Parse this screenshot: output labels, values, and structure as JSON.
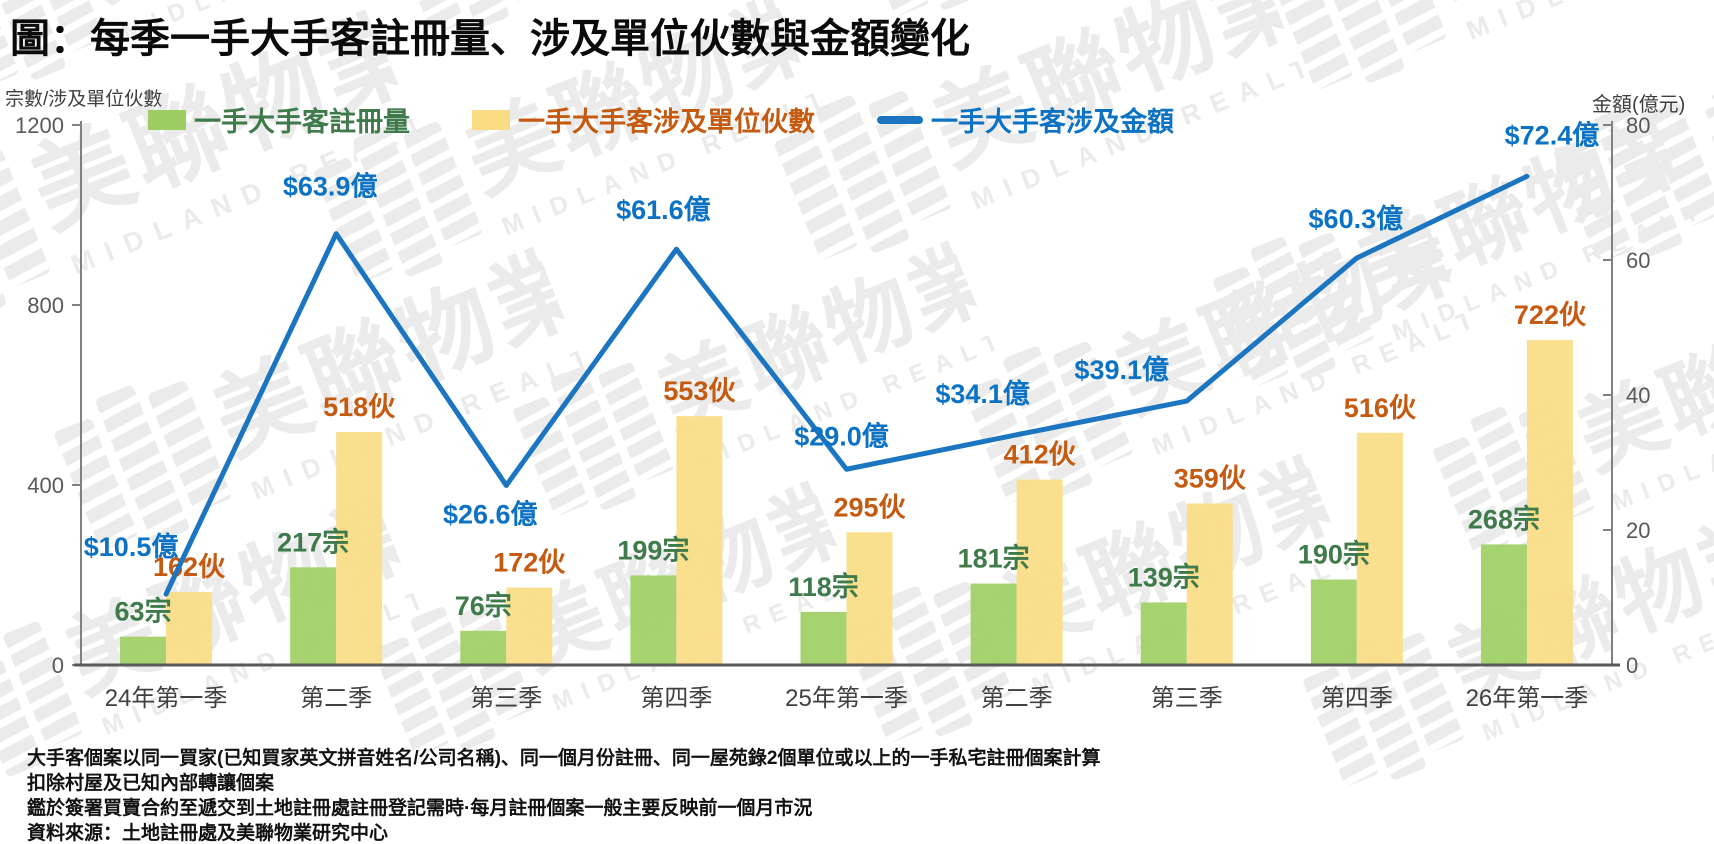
{
  "title": "圖：每季一手大手客註冊量、涉及單位伙數與金額變化",
  "left_axis_title": "宗數/涉及單位伙數",
  "right_axis_title": "金額(億元)",
  "legend": [
    {
      "label": "一手大手客註冊量",
      "swatch_color": "#9ECE63",
      "text_color": "#3F7A4B",
      "type": "swatch"
    },
    {
      "label": "一手大手客涉及單位伙數",
      "swatch_color": "#FADC85",
      "text_color": "#C55A11",
      "type": "swatch"
    },
    {
      "label": "一手大手客涉及金額",
      "swatch_color": "#1B75C0",
      "text_color": "#0C72C4",
      "type": "line"
    }
  ],
  "chart_data": {
    "type": "bar+line",
    "categories": [
      "24年第一季",
      "第二季",
      "第三季",
      "第四季",
      "25年第一季",
      "第二季",
      "第三季",
      "第四季",
      "26年第一季"
    ],
    "series": [
      {
        "name": "一手大手客註冊量",
        "type": "bar",
        "axis": "left",
        "unit_suffix": "宗",
        "values": [
          63,
          217,
          76,
          199,
          118,
          181,
          139,
          190,
          268
        ],
        "color": "#9ECE63",
        "label_color": "#3F7A4B"
      },
      {
        "name": "一手大手客涉及單位伙數",
        "type": "bar",
        "axis": "left",
        "unit_suffix": "伙",
        "values": [
          162,
          518,
          172,
          553,
          295,
          412,
          359,
          516,
          722
        ],
        "color": "#FADC85",
        "label_color": "#C55A11"
      },
      {
        "name": "一手大手客涉及金額",
        "type": "line",
        "axis": "right",
        "label_prefix": "$",
        "unit_suffix": "億",
        "decimals": 1,
        "values": [
          10.5,
          63.9,
          26.6,
          61.6,
          29.0,
          34.1,
          39.1,
          60.3,
          72.4
        ],
        "color": "#1B75C0",
        "label_color": "#0C72C4"
      }
    ],
    "left_axis": {
      "min": 0,
      "max": 1200,
      "ticks": [
        0,
        400,
        800,
        1200
      ]
    },
    "right_axis": {
      "min": 0,
      "max": 80,
      "ticks": [
        0,
        20,
        40,
        60,
        80
      ]
    },
    "grid": false,
    "legend_position": "top"
  },
  "footnotes": [
    "大手客個案以同一買家(已知買家英文拼音姓名/公司名稱)、同一個月份註冊、同一屋苑錄2個單位或以上的一手私宅註冊個案計算",
    "扣除村屋及已知內部轉讓個案",
    "鑑於簽署買賣合約至遞交到土地註冊處註冊登記需時·每月註冊個案一般主要反映前一個月市況",
    "資料來源：土地註冊處及美聯物業研究中心"
  ],
  "watermark": {
    "cjk": "美聯物業",
    "latin": "MIDLAND REALTY",
    "color": "#ebebeb"
  },
  "colors": {
    "axis_line": "#808080",
    "x_axis_line": "#595959",
    "tick_label": "#595959",
    "category_label": "#404040"
  }
}
